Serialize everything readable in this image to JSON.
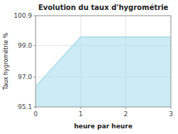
{
  "chart_data": {
    "type": "area",
    "title": "Evolution du taux d'hygrométrie",
    "x_label": "heure par heure",
    "y_label": "Taux hygrométrie %",
    "x": [
      0,
      1,
      3
    ],
    "values": [
      96.4,
      99.55,
      99.55
    ],
    "color": "#aaddee",
    "xlim": [
      0,
      3
    ],
    "ylim": [
      95.1,
      100.9
    ],
    "xticks": [
      0,
      1,
      2,
      3
    ],
    "yticks": [
      95.1,
      {
        "value": 97.0,
        "label": "97.0"
      },
      {
        "value": 99.0,
        "label": "99.0"
      },
      100.9
    ],
    "grid": true
  }
}
